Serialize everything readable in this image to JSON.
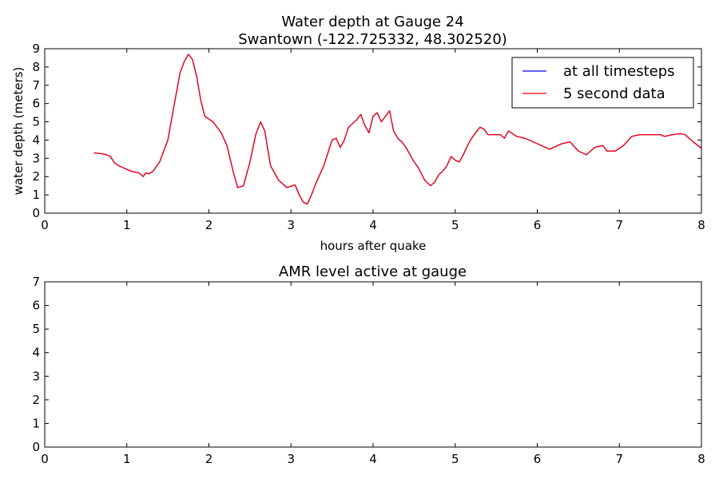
{
  "figure": {
    "background": "#ffffff"
  },
  "chart_data": [
    {
      "type": "line",
      "title": "Water depth at Gauge 24",
      "subtitle": "Swantown  (-122.725332, 48.302520)",
      "xlabel": "hours after quake",
      "ylabel": "water depth (meters)",
      "xlim": [
        0,
        8
      ],
      "ylim": [
        0,
        9
      ],
      "xticks": [
        "0",
        "1",
        "2",
        "3",
        "4",
        "5",
        "6",
        "7",
        "8"
      ],
      "yticks": [
        "0",
        "1",
        "2",
        "3",
        "4",
        "5",
        "6",
        "7",
        "8",
        "9"
      ],
      "grid": false,
      "legend": "top-right",
      "series": [
        {
          "name": "at all timesteps",
          "color": "#0000ff",
          "x": [
            0.6,
            0.7,
            0.75,
            0.8,
            0.85,
            0.9,
            0.95,
            1.0,
            1.05,
            1.1,
            1.15,
            1.2,
            1.23,
            1.27,
            1.32,
            1.4,
            1.5,
            1.58,
            1.65,
            1.7,
            1.75,
            1.8,
            1.85,
            1.9,
            1.95,
            2.05,
            2.15,
            2.22,
            2.3,
            2.35,
            2.42,
            2.5,
            2.57,
            2.63,
            2.68,
            2.75,
            2.85,
            2.95,
            3.05,
            3.1,
            3.15,
            3.2,
            3.25,
            3.3,
            3.4,
            3.45,
            3.5,
            3.55,
            3.6,
            3.65,
            3.7,
            3.75,
            3.8,
            3.85,
            3.9,
            3.95,
            4.0,
            4.05,
            4.1,
            4.15,
            4.2,
            4.25,
            4.3,
            4.35,
            4.4,
            4.5,
            4.55,
            4.63,
            4.7,
            4.75,
            4.8,
            4.85,
            4.9,
            4.95,
            5.0,
            5.05,
            5.1,
            5.15,
            5.2,
            5.3,
            5.35,
            5.4,
            5.55,
            5.6,
            5.65,
            5.75,
            5.85,
            5.95,
            6.05,
            6.15,
            6.3,
            6.4,
            6.5,
            6.6,
            6.7,
            6.8,
            6.85,
            6.95,
            7.05,
            7.15,
            7.25,
            7.35,
            7.5,
            7.55,
            7.65,
            7.75,
            7.8,
            7.9,
            8.0
          ],
          "y": [
            3.3,
            3.25,
            3.2,
            3.1,
            2.75,
            2.6,
            2.5,
            2.4,
            2.3,
            2.25,
            2.2,
            2.0,
            2.2,
            2.15,
            2.3,
            2.8,
            4.0,
            6.0,
            7.7,
            8.3,
            8.7,
            8.4,
            7.5,
            6.2,
            5.3,
            5.0,
            4.4,
            3.7,
            2.2,
            1.4,
            1.5,
            2.8,
            4.3,
            5.0,
            4.5,
            2.6,
            1.8,
            1.4,
            1.55,
            1.0,
            0.6,
            0.5,
            1.0,
            1.6,
            2.6,
            3.3,
            4.0,
            4.1,
            3.6,
            4.0,
            4.7,
            4.9,
            5.1,
            5.4,
            4.8,
            4.4,
            5.3,
            5.5,
            5.0,
            5.3,
            5.6,
            4.5,
            4.1,
            3.9,
            3.6,
            2.8,
            2.5,
            1.8,
            1.5,
            1.7,
            2.1,
            2.3,
            2.6,
            3.1,
            2.9,
            2.8,
            3.2,
            3.7,
            4.1,
            4.7,
            4.6,
            4.3,
            4.3,
            4.1,
            4.5,
            4.2,
            4.1,
            3.9,
            3.7,
            3.5,
            3.8,
            3.9,
            3.4,
            3.2,
            3.6,
            3.7,
            3.4,
            3.4,
            3.7,
            4.2,
            4.3,
            4.3,
            4.3,
            4.2,
            4.3,
            4.35,
            4.3,
            3.9,
            3.55
          ]
        },
        {
          "name": "5 second data",
          "color": "#ff0000",
          "x": [
            0.6,
            0.7,
            0.75,
            0.8,
            0.85,
            0.9,
            0.95,
            1.0,
            1.05,
            1.1,
            1.15,
            1.2,
            1.23,
            1.27,
            1.32,
            1.4,
            1.5,
            1.58,
            1.65,
            1.7,
            1.75,
            1.8,
            1.85,
            1.9,
            1.95,
            2.05,
            2.15,
            2.22,
            2.3,
            2.35,
            2.42,
            2.5,
            2.57,
            2.63,
            2.68,
            2.75,
            2.85,
            2.95,
            3.05,
            3.1,
            3.15,
            3.2,
            3.25,
            3.3,
            3.4,
            3.45,
            3.5,
            3.55,
            3.6,
            3.65,
            3.7,
            3.75,
            3.8,
            3.85,
            3.9,
            3.95,
            4.0,
            4.05,
            4.1,
            4.15,
            4.2,
            4.25,
            4.3,
            4.35,
            4.4,
            4.5,
            4.55,
            4.63,
            4.7,
            4.75,
            4.8,
            4.85,
            4.9,
            4.95,
            5.0,
            5.05,
            5.1,
            5.15,
            5.2,
            5.3,
            5.35,
            5.4,
            5.55,
            5.6,
            5.65,
            5.75,
            5.85,
            5.95,
            6.05,
            6.15,
            6.3,
            6.4,
            6.5,
            6.6,
            6.7,
            6.8,
            6.85,
            6.95,
            7.05,
            7.15,
            7.25,
            7.35,
            7.5,
            7.55,
            7.65,
            7.75,
            7.8,
            7.9,
            8.0
          ],
          "y": [
            3.3,
            3.25,
            3.2,
            3.1,
            2.75,
            2.6,
            2.5,
            2.4,
            2.3,
            2.25,
            2.2,
            2.0,
            2.2,
            2.15,
            2.3,
            2.8,
            4.0,
            6.0,
            7.7,
            8.3,
            8.7,
            8.4,
            7.5,
            6.2,
            5.3,
            5.0,
            4.4,
            3.7,
            2.2,
            1.4,
            1.5,
            2.8,
            4.3,
            5.0,
            4.5,
            2.6,
            1.8,
            1.4,
            1.55,
            1.0,
            0.6,
            0.5,
            1.0,
            1.6,
            2.6,
            3.3,
            4.0,
            4.1,
            3.6,
            4.0,
            4.7,
            4.9,
            5.1,
            5.4,
            4.8,
            4.4,
            5.3,
            5.5,
            5.0,
            5.3,
            5.6,
            4.5,
            4.1,
            3.9,
            3.6,
            2.8,
            2.5,
            1.8,
            1.5,
            1.7,
            2.1,
            2.3,
            2.6,
            3.1,
            2.9,
            2.8,
            3.2,
            3.7,
            4.1,
            4.7,
            4.6,
            4.3,
            4.3,
            4.1,
            4.5,
            4.2,
            4.1,
            3.9,
            3.7,
            3.5,
            3.8,
            3.9,
            3.4,
            3.2,
            3.6,
            3.7,
            3.4,
            3.4,
            3.7,
            4.2,
            4.3,
            4.3,
            4.3,
            4.2,
            4.3,
            4.35,
            4.3,
            3.9,
            3.55
          ]
        }
      ]
    },
    {
      "type": "line",
      "title": "AMR level active at gauge",
      "xlabel": "",
      "ylabel": "",
      "xlim": [
        0,
        8
      ],
      "ylim": [
        0,
        7
      ],
      "xticks": [
        "0",
        "1",
        "2",
        "3",
        "4",
        "5",
        "6",
        "7",
        "8"
      ],
      "yticks": [
        "0",
        "1",
        "2",
        "3",
        "4",
        "5",
        "6",
        "7"
      ],
      "grid": false,
      "series": []
    }
  ]
}
